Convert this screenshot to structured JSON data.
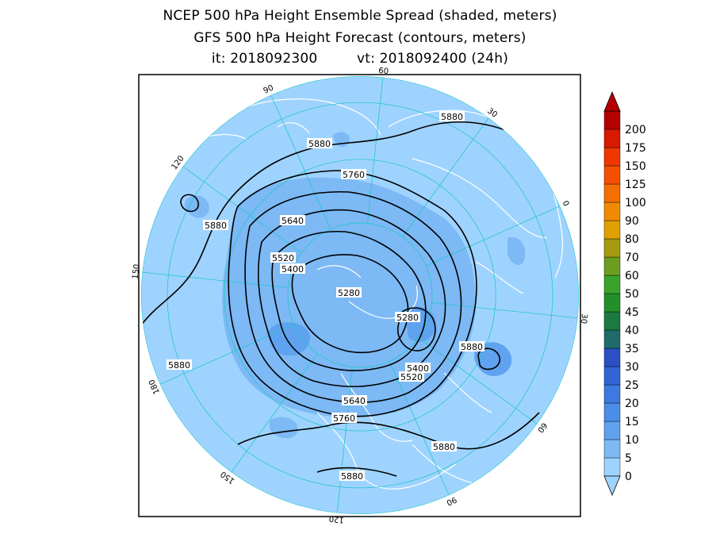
{
  "title": {
    "line1": "NCEP 500 hPa Height Ensemble Spread (shaded, meters)",
    "line2": "GFS 500 hPa Height Forecast (contours, meters)",
    "init_label": "it: 2018092300",
    "valid_label": "vt: 2018092400 (24h)"
  },
  "colors": {
    "ocean_fill": "#9fd3ff",
    "spread_5_10": "#7cb9f5",
    "spread_10_15": "#5fa2ef",
    "land_outline": "#ffffff",
    "graticule": "#22c8c8",
    "contour": "#000000",
    "frame": "#000000"
  },
  "colorbar": {
    "levels": [
      "0",
      "5",
      "10",
      "15",
      "20",
      "25",
      "30",
      "35",
      "40",
      "45",
      "50",
      "60",
      "70",
      "80",
      "90",
      "100",
      "125",
      "150",
      "175",
      "200"
    ],
    "colors": [
      "#9fd3ff",
      "#7cb9f5",
      "#5fa2ef",
      "#4b8ee8",
      "#3d79e0",
      "#3165d6",
      "#2a50c4",
      "#1f6b6b",
      "#1a7a40",
      "#238f2a",
      "#3aa32a",
      "#6b9e1e",
      "#a59a10",
      "#e0a000",
      "#f08a00",
      "#f56e00",
      "#f55000",
      "#ef3500",
      "#d81a00",
      "#b40000"
    ]
  },
  "graticule_labels": [
    "60",
    "30",
    "0",
    "-30",
    "-60",
    "-90",
    "-120",
    "-150",
    "180",
    "150",
    "120",
    "90"
  ],
  "contour_labels": [
    "5880",
    "5880",
    "5760",
    "5880",
    "5640",
    "5520",
    "5400",
    "5280",
    "5280",
    "5880",
    "5880",
    "5400",
    "5520",
    "5640",
    "5760",
    "5880",
    "5880"
  ],
  "icons": {
    "colorbar_top": "triangle-up",
    "colorbar_bottom": "triangle-down"
  }
}
